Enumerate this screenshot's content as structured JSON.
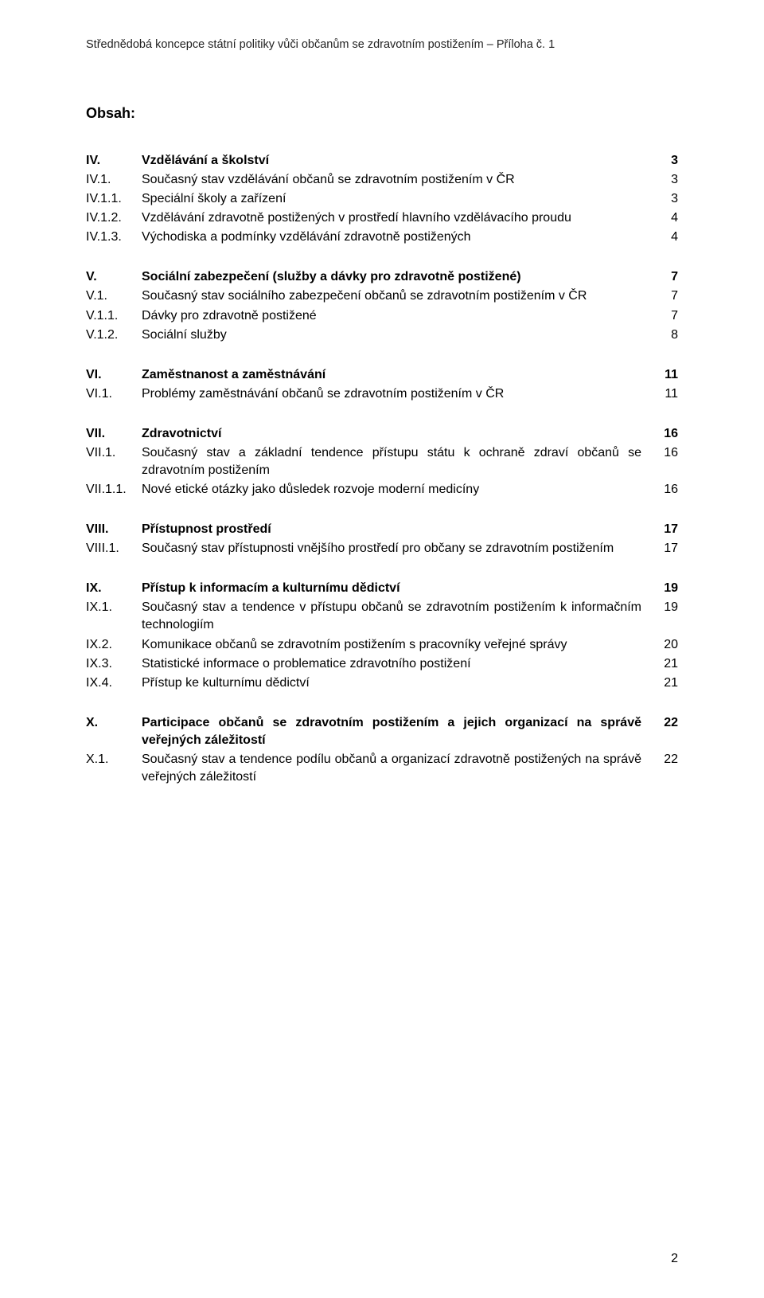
{
  "header": "Střednědobá koncepce státní politiky vůči občanům se zdravotním postižením – Příloha č. 1",
  "title": "Obsah:",
  "sections": [
    {
      "rows": [
        {
          "num": "IV.",
          "text": "Vzdělávání a školství",
          "bold": true,
          "page": "3",
          "pageBold": true
        },
        {
          "num": "IV.1.",
          "text": "Současný stav vzdělávání občanů se zdravotním postižením v ČR",
          "bold": false,
          "page": "3",
          "pageBold": false
        },
        {
          "num": "IV.1.1.",
          "text": "Speciální školy a zařízení",
          "bold": false,
          "page": "3",
          "pageBold": false
        },
        {
          "num": "IV.1.2.",
          "text": "Vzdělávání zdravotně postižených v prostředí hlavního vzdělávacího proudu",
          "bold": false,
          "page": "4",
          "pageBold": false
        },
        {
          "num": "IV.1.3.",
          "text": "Východiska a podmínky vzdělávání zdravotně postižených",
          "bold": false,
          "page": "4",
          "pageBold": false
        }
      ]
    },
    {
      "rows": [
        {
          "num": "V.",
          "text": "Sociální zabezpečení (služby a  dávky pro zdravotně postižené)",
          "bold": true,
          "page": "7",
          "pageBold": true
        },
        {
          "num": "V.1.",
          "text": "Současný stav sociálního zabezpečení občanů se zdravotním postižením v ČR",
          "bold": false,
          "page": "7",
          "pageBold": false
        },
        {
          "num": "V.1.1.",
          "text": "Dávky pro zdravotně postižené",
          "bold": false,
          "page": "7",
          "pageBold": false
        },
        {
          "num": "V.1.2.",
          "text": "Sociální služby",
          "bold": false,
          "page": "8",
          "pageBold": false
        }
      ]
    },
    {
      "rows": [
        {
          "num": "VI.",
          "text": "Zaměstnanost a zaměstnávání",
          "bold": true,
          "page": "11",
          "pageBold": true
        },
        {
          "num": "VI.1.",
          "text": "Problémy zaměstnávání občanů se zdravotním postižením v ČR",
          "bold": false,
          "page": "11",
          "pageBold": false
        }
      ]
    },
    {
      "rows": [
        {
          "num": "VII.",
          "text": "Zdravotnictví",
          "bold": true,
          "page": "16",
          "pageBold": true
        },
        {
          "num": "VII.1.",
          "text": "Současný stav a základní tendence přístupu státu k ochraně zdraví občanů se zdravotním postižením",
          "bold": false,
          "page": "16",
          "pageBold": false
        },
        {
          "num": "VII.1.1.",
          "text": "Nové etické otázky jako důsledek rozvoje moderní medicíny",
          "bold": false,
          "page": "16",
          "pageBold": false
        }
      ]
    },
    {
      "rows": [
        {
          "num": "VIII.",
          "text": "Přístupnost prostředí",
          "bold": true,
          "page": "17",
          "pageBold": true
        },
        {
          "num": "VIII.1.",
          "text": "Současný stav přístupnosti vnějšího prostředí pro občany se zdravotním postižením",
          "bold": false,
          "page": "17",
          "pageBold": false
        }
      ]
    },
    {
      "rows": [
        {
          "num": "IX.",
          "text": "Přístup k informacím a kulturnímu dědictví",
          "bold": true,
          "page": "19",
          "pageBold": true
        },
        {
          "num": "IX.1.",
          "text": "Současný stav a tendence v přístupu občanů se zdravotním postižením k informačním technologiím",
          "bold": false,
          "page": "19",
          "pageBold": false
        },
        {
          "num": "IX.2.",
          "text": "Komunikace občanů se zdravotním postižením s pracovníky veřejné správy",
          "bold": false,
          "page": "20",
          "pageBold": false
        },
        {
          "num": "IX.3.",
          "text": "Statistické informace o problematice zdravotního postižení",
          "bold": false,
          "page": "21",
          "pageBold": false
        },
        {
          "num": "IX.4.",
          "text": "Přístup ke kulturnímu dědictví",
          "bold": false,
          "page": "21",
          "pageBold": false
        }
      ]
    },
    {
      "rows": [
        {
          "num": "X.",
          "text": "Participace občanů se zdravotním postižením a jejich organizací na správě veřejných záležitostí",
          "bold": true,
          "page": "22",
          "pageBold": true
        },
        {
          "num": "X.1.",
          "text": "Současný stav a tendence podílu občanů a organizací zdravotně postižených na správě veřejných záležitostí",
          "bold": false,
          "page": "22",
          "pageBold": false
        }
      ]
    }
  ],
  "footerPage": "2"
}
